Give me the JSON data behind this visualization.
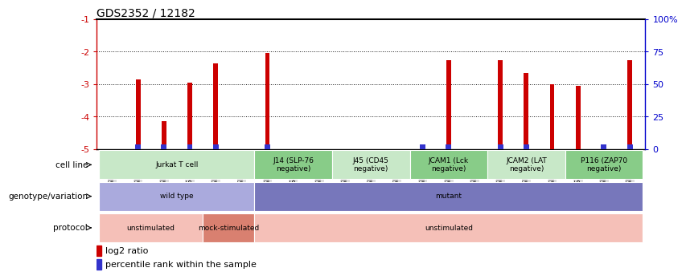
{
  "title": "GDS2352 / 12182",
  "samples_display": [
    "GSM89762",
    "GSM89765",
    "GSM89767",
    "GSM89759",
    "GSM89760",
    "GSM89764",
    "GSM89753",
    "GSM89755",
    "GSM89771",
    "GSM89756",
    "GSM89757",
    "GSM89758",
    "GSM89761",
    "GSM89763",
    "GSM89773",
    "GSM89766",
    "GSM89768",
    "GSM89770",
    "GSM89754",
    "GSM89769",
    "GSM89772"
  ],
  "log2_values": [
    0,
    -2.85,
    -4.15,
    -2.95,
    -2.35,
    0,
    -2.05,
    0,
    0,
    0,
    0,
    0,
    0,
    -2.25,
    0,
    -2.25,
    -2.65,
    -3.0,
    -3.05,
    0,
    -2.25
  ],
  "blue_markers": [
    false,
    true,
    true,
    true,
    true,
    false,
    true,
    false,
    false,
    false,
    false,
    false,
    true,
    true,
    false,
    true,
    true,
    false,
    false,
    true,
    true
  ],
  "ylim": [
    -5,
    -1
  ],
  "yticks": [
    -5,
    -4,
    -3,
    -2,
    -1
  ],
  "y2ticks": [
    0,
    25,
    50,
    75,
    100
  ],
  "y2labels": [
    "0",
    "25",
    "50",
    "75",
    "100%"
  ],
  "cell_line_groups": [
    {
      "label": "Jurkat T cell",
      "start": 0,
      "end": 6,
      "color": "#c8e8c8"
    },
    {
      "label": "J14 (SLP-76\nnegative)",
      "start": 6,
      "end": 9,
      "color": "#88cc88"
    },
    {
      "label": "J45 (CD45\nnegative)",
      "start": 9,
      "end": 12,
      "color": "#c8e8c8"
    },
    {
      "label": "JCAM1 (Lck\nnegative)",
      "start": 12,
      "end": 15,
      "color": "#88cc88"
    },
    {
      "label": "JCAM2 (LAT\nnegative)",
      "start": 15,
      "end": 18,
      "color": "#c8e8c8"
    },
    {
      "label": "P116 (ZAP70\nnegative)",
      "start": 18,
      "end": 21,
      "color": "#88cc88"
    }
  ],
  "genotype_groups": [
    {
      "label": "wild type",
      "start": 0,
      "end": 6,
      "color": "#aaaadd"
    },
    {
      "label": "mutant",
      "start": 6,
      "end": 21,
      "color": "#7777bb"
    }
  ],
  "protocol_groups": [
    {
      "label": "unstimulated",
      "start": 0,
      "end": 4,
      "color": "#f5c0b8"
    },
    {
      "label": "mock-stimulated",
      "start": 4,
      "end": 6,
      "color": "#d98070"
    },
    {
      "label": "unstimulated",
      "start": 6,
      "end": 21,
      "color": "#f5c0b8"
    }
  ],
  "bar_color": "#cc0000",
  "blue_color": "#3333cc",
  "axis_label_color": "#cc0000",
  "y2_color": "#0000cc",
  "tick_bg_color": "#dddddd"
}
